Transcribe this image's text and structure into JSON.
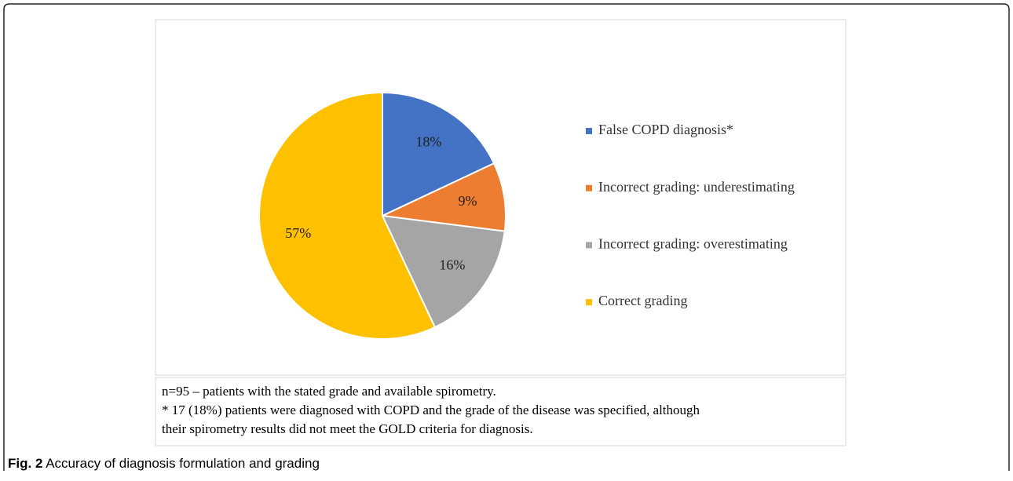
{
  "chart_data": {
    "type": "pie",
    "categories": [
      "False COPD diagnosis*",
      "Incorrect grading: underestimating",
      "Incorrect grading: overestimating",
      "Correct grading"
    ],
    "values": [
      18,
      9,
      16,
      57
    ],
    "value_labels": [
      "18%",
      "9%",
      "16%",
      "57%"
    ],
    "colors": [
      "#4472c4",
      "#ed7d31",
      "#a5a5a5",
      "#ffc000"
    ],
    "legend": "right"
  },
  "figure": {
    "note": [
      "n=95 – patients with the stated grade and available spirometry.",
      "* 17 (18%) patients were diagnosed with COPD and the grade of the disease was specified, although",
      "their spirometry results did not meet the GOLD criteria for diagnosis."
    ],
    "caption_label": "Fig. 2",
    "caption": "Accuracy of diagnosis formulation and grading"
  }
}
